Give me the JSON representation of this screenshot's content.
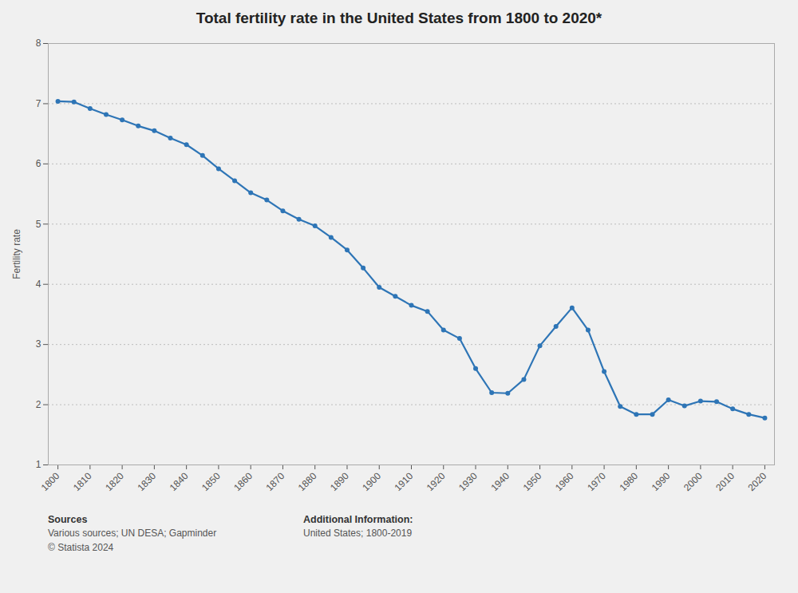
{
  "chart_data": {
    "type": "line",
    "title": "Total fertility rate in the United States from 1800 to 2020*",
    "ylabel": "Fertility rate",
    "color": "#2E75B6",
    "marker": "circle",
    "grid": true,
    "x": [
      1800,
      1805,
      1810,
      1815,
      1820,
      1825,
      1830,
      1835,
      1840,
      1845,
      1850,
      1855,
      1860,
      1865,
      1870,
      1875,
      1880,
      1885,
      1890,
      1895,
      1900,
      1905,
      1910,
      1915,
      1920,
      1925,
      1930,
      1935,
      1940,
      1945,
      1950,
      1955,
      1960,
      1965,
      1970,
      1975,
      1980,
      1985,
      1990,
      1995,
      2000,
      2005,
      2010,
      2015,
      2020
    ],
    "values": [
      7.04,
      7.03,
      6.92,
      6.82,
      6.73,
      6.63,
      6.55,
      6.43,
      6.32,
      6.14,
      5.92,
      5.72,
      5.52,
      5.4,
      5.22,
      5.08,
      4.97,
      4.78,
      4.57,
      4.27,
      3.95,
      3.8,
      3.65,
      3.55,
      3.24,
      3.1,
      2.6,
      2.2,
      2.19,
      2.42,
      2.98,
      3.3,
      3.61,
      3.24,
      2.55,
      1.97,
      1.84,
      1.84,
      2.08,
      1.98,
      2.06,
      2.05,
      1.93,
      1.84,
      1.78
    ],
    "xlim": [
      1797,
      2023
    ],
    "xticks": [
      1800,
      1810,
      1820,
      1830,
      1840,
      1850,
      1860,
      1870,
      1880,
      1890,
      1900,
      1910,
      1920,
      1930,
      1940,
      1950,
      1960,
      1970,
      1980,
      1990,
      2000,
      2010,
      2020
    ],
    "ylim": [
      1,
      8
    ],
    "yticks": [
      1,
      2,
      3,
      4,
      5,
      6,
      7,
      8
    ],
    "annotations": [
      {
        "label": "Sources",
        "text": "Various sources; UN DESA; Gapminder\n© Statista 2024"
      },
      {
        "label": "Additional Information:",
        "text": "United States; 1800-2019"
      }
    ]
  }
}
